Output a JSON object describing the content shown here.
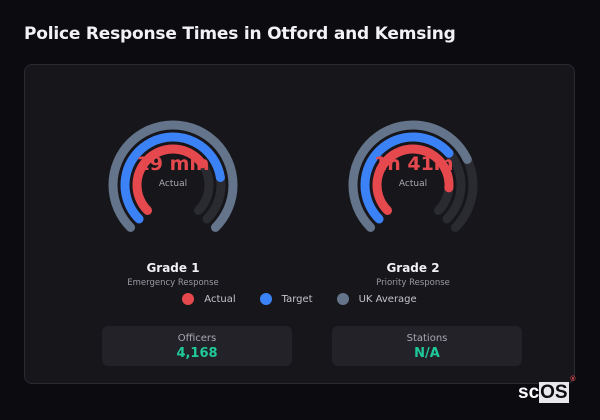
{
  "header": {
    "title": "Police Response Times in Otford and Kemsing"
  },
  "gauges": [
    {
      "value": "19 min",
      "value_label": "Actual",
      "name": "Grade 1",
      "description": "Emergency Response",
      "rings": {
        "actual": 0.7,
        "target": 0.8,
        "uk_average": 1.0
      }
    },
    {
      "value": "1h 41m",
      "value_label": "Actual",
      "name": "Grade 2",
      "description": "Priority Response",
      "rings": {
        "actual": 0.85,
        "target": 0.68,
        "uk_average": 0.74
      }
    }
  ],
  "legend": [
    {
      "label": "Actual",
      "color": "#e5484d"
    },
    {
      "label": "Target",
      "color": "#3b82f6"
    },
    {
      "label": "UK Average",
      "color": "#64748b"
    }
  ],
  "stats": [
    {
      "label": "Officers",
      "value": "4,168"
    },
    {
      "label": "Stations",
      "value": "N/A"
    }
  ],
  "brand": {
    "prefix": "sc",
    "highlight": "OS",
    "mark": "®"
  },
  "colors": {
    "actual": "#e5484d",
    "target": "#3b82f6",
    "uk_average": "#64748b",
    "track": "#2a2a31",
    "stat_value": "#1fc99a"
  }
}
